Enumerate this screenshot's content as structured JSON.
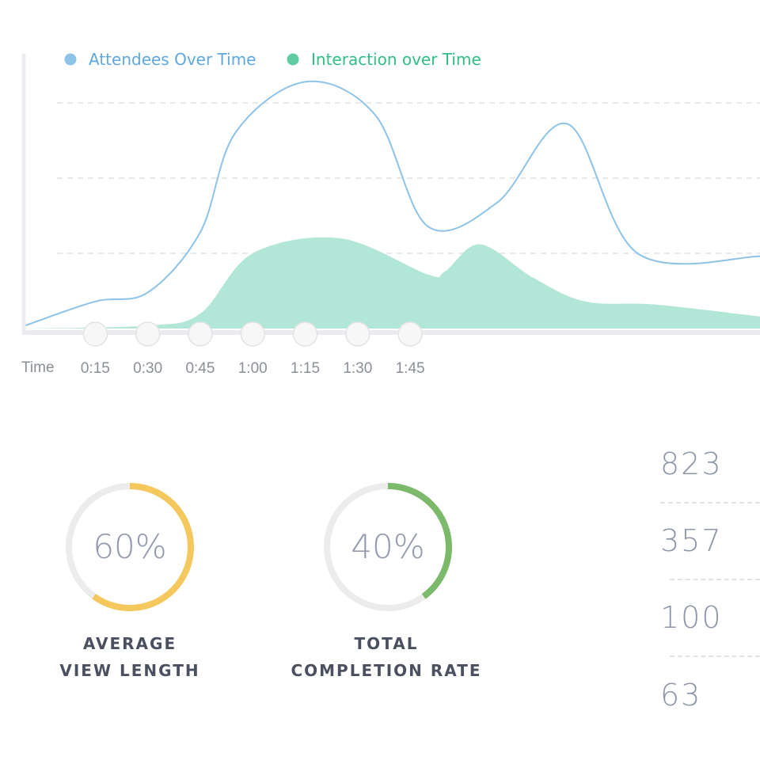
{
  "chart_data": {
    "type": "area",
    "legend": [
      {
        "name": "Attendees Over Time",
        "color": "#8ec3e8",
        "text_color": "#5fa8dd"
      },
      {
        "name": "Interaction over Time",
        "color": "#5fcca2",
        "text_color": "#2fbf86"
      }
    ],
    "xlabel": "Time",
    "x_ticks": [
      "0:15",
      "0:30",
      "0:45",
      "1:00",
      "1:15",
      "1:30",
      "1:45"
    ],
    "x_range": [
      -0.05,
      2.05
    ],
    "ylim": [
      0,
      100
    ],
    "grid": true,
    "series": [
      {
        "name": "Attendees Over Time",
        "style": "line",
        "points": [
          [
            -0.05,
            1
          ],
          [
            0.15,
            9
          ],
          [
            0.3,
            12
          ],
          [
            0.45,
            32
          ],
          [
            0.55,
            65
          ],
          [
            0.75,
            82
          ],
          [
            0.95,
            71
          ],
          [
            1.1,
            34
          ],
          [
            1.3,
            42
          ],
          [
            1.5,
            68
          ],
          [
            1.7,
            25
          ],
          [
            2.05,
            24
          ]
        ]
      },
      {
        "name": "Interaction over Time",
        "style": "area",
        "points": [
          [
            -0.05,
            0
          ],
          [
            0.3,
            1
          ],
          [
            0.45,
            5
          ],
          [
            0.6,
            25
          ],
          [
            0.85,
            30
          ],
          [
            1.1,
            18
          ],
          [
            1.15,
            19
          ],
          [
            1.25,
            28
          ],
          [
            1.4,
            17
          ],
          [
            1.55,
            9
          ],
          [
            1.75,
            8
          ],
          [
            2.05,
            4
          ]
        ]
      }
    ]
  },
  "stats": {
    "rings": [
      {
        "value": "60%",
        "fraction": 0.6,
        "color": "#f5c85e",
        "label_line1": "AVERAGE",
        "label_line2": "VIEW LENGTH"
      },
      {
        "value": "40%",
        "fraction": 0.4,
        "color": "#7cb96b",
        "label_line1": "TOTAL",
        "label_line2": "COMPLETION RATE"
      }
    ],
    "numbers": [
      "823",
      "357",
      "100",
      "63"
    ]
  }
}
